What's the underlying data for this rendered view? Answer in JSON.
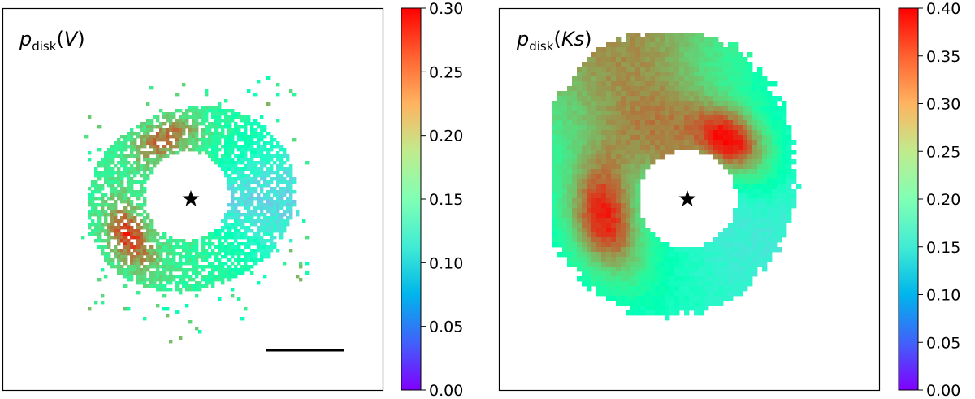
{
  "chart_data": [
    {
      "type": "heatmap",
      "title_symbol": "p",
      "title_subscript": "disk",
      "title_band": "V",
      "colormap": "rainbow",
      "colorbar": {
        "range": [
          0.0,
          0.3
        ],
        "tick_labels": [
          "0.00",
          "0.05",
          "0.10",
          "0.15",
          "0.20",
          "0.25",
          "0.30"
        ]
      },
      "disk": {
        "shape": "ring",
        "inner_hole": "empty",
        "structure": "sparse",
        "features": [
          {
            "region": "north-west arc",
            "value": 0.26
          },
          {
            "region": "south-west arc",
            "value": 0.28
          },
          {
            "region": "east side",
            "value": 0.1
          },
          {
            "region": "ring background",
            "value": 0.18
          }
        ]
      },
      "markers": [
        {
          "symbol": "star",
          "meaning": "central star"
        },
        {
          "symbol": "scale-bar",
          "label": ""
        }
      ]
    },
    {
      "type": "heatmap",
      "title_symbol": "p",
      "title_subscript": "disk",
      "title_band": "Ks",
      "colormap": "rainbow",
      "colorbar": {
        "range": [
          0.0,
          0.4
        ],
        "tick_labels": [
          "0.00",
          "0.05",
          "0.10",
          "0.15",
          "0.20",
          "0.25",
          "0.30",
          "0.35",
          "0.40"
        ]
      },
      "disk": {
        "shape": "ring",
        "inner_hole": "empty",
        "structure": "filled",
        "features": [
          {
            "region": "north-east lobe",
            "value": 0.38
          },
          {
            "region": "south-west lobe",
            "value": 0.38
          },
          {
            "region": "north-west arc",
            "value": 0.34
          },
          {
            "region": "east side",
            "value": 0.15
          },
          {
            "region": "south side",
            "value": 0.18
          }
        ]
      },
      "markers": [
        {
          "symbol": "star",
          "meaning": "central star"
        }
      ]
    }
  ]
}
